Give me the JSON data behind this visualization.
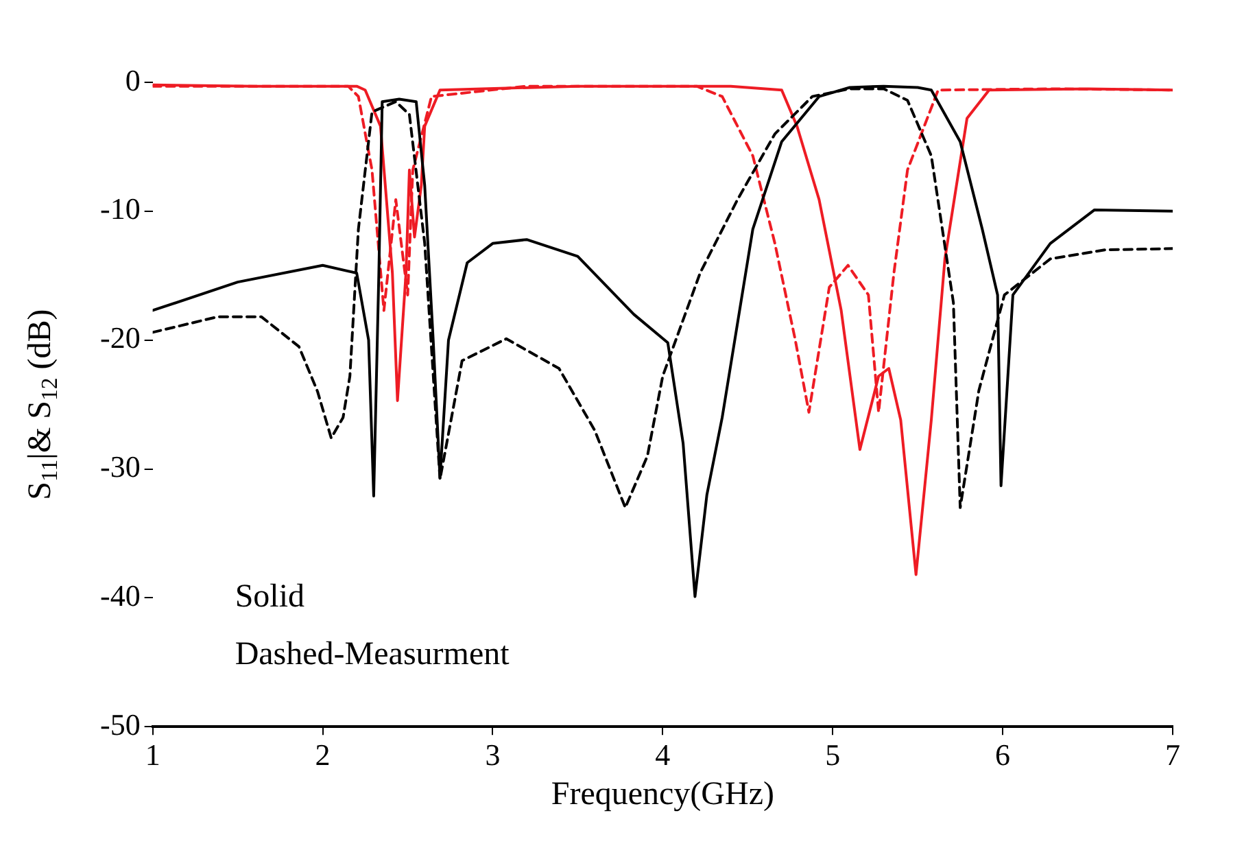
{
  "chart_data": {
    "type": "line",
    "xlabel": "Frequency(GHz)",
    "ylabel": "S$_{11}$|& S$_{12}$ (dB)",
    "xlim": [
      1,
      7
    ],
    "xticks": [
      1,
      2,
      3,
      4,
      5,
      6,
      7
    ],
    "ylim": [
      -50,
      0
    ],
    "yticks": [
      0,
      -10,
      -20,
      -30,
      -40,
      -50
    ],
    "grid": false,
    "legend": false,
    "marker": "none",
    "annotations": [
      "Solid",
      "Dashed-Measurment"
    ],
    "series": [
      {
        "color": "#000000",
        "line_style": "solid",
        "x": [
          1,
          1.5,
          2.0,
          2.2,
          2.27,
          2.3,
          2.33,
          2.35,
          2.45,
          2.55,
          2.6,
          2.65,
          2.69,
          2.74,
          2.85,
          3.0,
          3.2,
          3.5,
          3.83,
          4.03,
          4.12,
          4.19,
          4.26,
          4.35,
          4.53,
          4.7,
          4.92,
          5.1,
          5.3,
          5.5,
          5.58,
          5.75,
          5.88,
          5.97,
          5.99,
          6.02,
          6.06,
          6.28,
          6.54,
          7
        ],
        "values": [
          -17.7,
          -15.5,
          -14.2,
          -14.8,
          -20,
          -32.1,
          -15,
          -1.5,
          -1.3,
          -1.5,
          -8,
          -20,
          -30.7,
          -20,
          -14,
          -12.5,
          -12.2,
          -13.5,
          -18,
          -20.2,
          -28,
          -39.9,
          -32,
          -26,
          -11.4,
          -4.6,
          -1.1,
          -0.4,
          -0.3,
          -0.4,
          -0.6,
          -4.6,
          -11.4,
          -16.5,
          -31.3,
          -25,
          -16.5,
          -12.5,
          -9.9,
          -10
        ]
      },
      {
        "color": "#000000",
        "line_style": "dashed",
        "x": [
          1,
          1.38,
          1.64,
          1.86,
          1.97,
          2.05,
          2.12,
          2.16,
          2.21,
          2.29,
          2.43,
          2.51,
          2.6,
          2.69,
          2.82,
          3.08,
          3.39,
          3.6,
          3.78,
          3.91,
          4.0,
          4.22,
          4.44,
          4.66,
          4.88,
          5.1,
          5.3,
          5.44,
          5.58,
          5.71,
          5.75,
          5.86,
          6.01,
          6.28,
          6.6,
          7
        ],
        "values": [
          -19.4,
          -18.2,
          -18.2,
          -20.5,
          -24,
          -27.6,
          -26,
          -22.8,
          -11.4,
          -2.3,
          -1.5,
          -2.5,
          -12.5,
          -30.8,
          -21.6,
          -19.9,
          -22.2,
          -27,
          -33,
          -29,
          -22.8,
          -14.8,
          -9.1,
          -4,
          -1.1,
          -0.5,
          -0.5,
          -1.4,
          -5.7,
          -17.1,
          -33,
          -23.9,
          -16.5,
          -13.7,
          -13,
          -12.9
        ]
      },
      {
        "color": "#ee1c24",
        "line_style": "solid",
        "x": [
          1,
          1.6,
          2.2,
          2.25,
          2.34,
          2.41,
          2.44,
          2.49,
          2.51,
          2.54,
          2.58,
          2.6,
          2.69,
          3.5,
          4.4,
          4.7,
          4.79,
          4.92,
          5.05,
          5.16,
          5.27,
          5.33,
          5.4,
          5.49,
          5.58,
          5.66,
          5.79,
          5.92,
          6.5,
          7
        ],
        "values": [
          -0.2,
          -0.3,
          -0.3,
          -0.6,
          -3.4,
          -14.8,
          -24.7,
          -14.8,
          -6.8,
          -12,
          -8,
          -3.4,
          -0.6,
          -0.3,
          -0.3,
          -0.6,
          -3.4,
          -9.1,
          -17.7,
          -28.5,
          -22.8,
          -22.2,
          -26.2,
          -38.2,
          -26.2,
          -13.7,
          -2.8,
          -0.6,
          -0.5,
          -0.6
        ]
      },
      {
        "color": "#ee1c24",
        "line_style": "dashed",
        "x": [
          1,
          1.6,
          2.15,
          2.21,
          2.29,
          2.36,
          2.43,
          2.5,
          2.53,
          2.64,
          3.2,
          4.2,
          4.35,
          4.53,
          4.66,
          4.78,
          4.86,
          4.98,
          5.09,
          5.21,
          5.27,
          5.36,
          5.44,
          5.62,
          6.3,
          7
        ],
        "values": [
          -0.3,
          -0.3,
          -0.3,
          -1.1,
          -6.8,
          -17.7,
          -9.1,
          -16.5,
          -6.8,
          -1.1,
          -0.3,
          -0.3,
          -1.1,
          -5.7,
          -12.5,
          -20,
          -25.6,
          -15.9,
          -14.2,
          -16.5,
          -25.6,
          -14.8,
          -6.8,
          -0.6,
          -0.5,
          -0.6
        ]
      }
    ]
  }
}
